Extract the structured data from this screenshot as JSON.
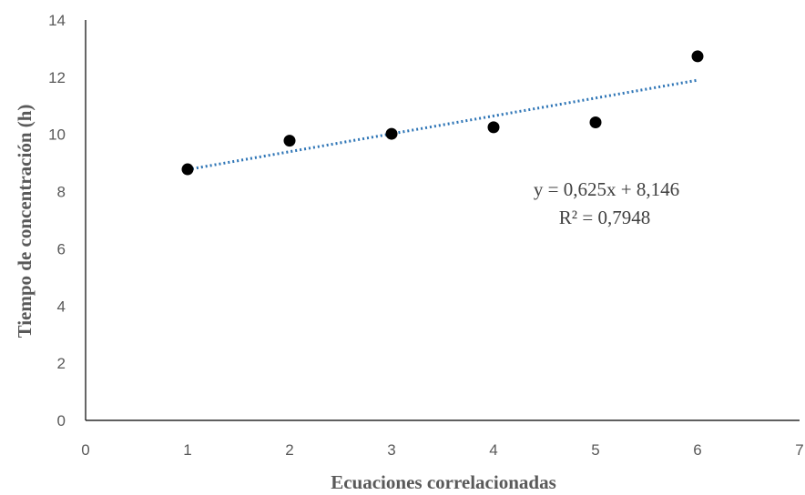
{
  "chart_data": {
    "type": "scatter",
    "title": "",
    "xlabel": "Ecuaciones correlacionadas",
    "ylabel": "Tiempo de concentración (h)",
    "xlim": [
      0,
      7
    ],
    "ylim": [
      0,
      14
    ],
    "x_ticks": [
      "0",
      "1",
      "2",
      "3",
      "4",
      "5",
      "6",
      "7"
    ],
    "y_ticks": [
      "0",
      "2",
      "4",
      "6",
      "8",
      "10",
      "12",
      "14"
    ],
    "grid": false,
    "legend": "none",
    "series": [
      {
        "x": [
          1,
          2,
          3,
          4,
          5,
          6
        ],
        "y": [
          8.78,
          9.78,
          10.02,
          10.25,
          10.42,
          12.73
        ],
        "color": "#000000"
      }
    ],
    "trendline": {
      "type": "linear",
      "slope": 0.625,
      "intercept": 8.146,
      "x_range": [
        1,
        6
      ],
      "color": "#2E75B6",
      "style": "dotted",
      "equation": "y = 0,625x + 8,146",
      "r_squared": "R² = 0,7948"
    }
  }
}
